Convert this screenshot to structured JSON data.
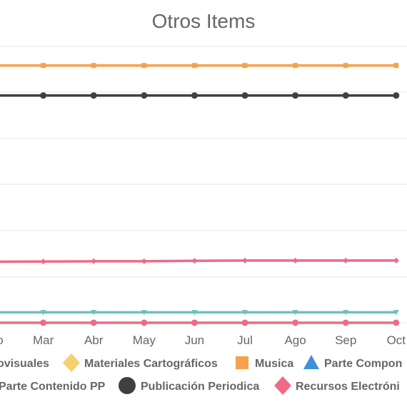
{
  "chart_data": {
    "type": "line",
    "title": "Otros Items",
    "categories": [
      "Feb",
      "Mar",
      "Abr",
      "May",
      "Jun",
      "Jul",
      "Ago",
      "Sep",
      "Oct"
    ],
    "category_labels_visible": [
      "o",
      "Mar",
      "Abr",
      "May",
      "Jun",
      "Jul",
      "Ago",
      "Sep",
      "Oct"
    ],
    "xlabel": "",
    "ylabel": "",
    "ylim": [
      0,
      5800
    ],
    "grid": true,
    "legend_position": "bottom",
    "series": [
      {
        "name": "Musica",
        "color": "#f4a24d",
        "marker": "square",
        "values": [
          5400,
          5400,
          5400,
          5400,
          5400,
          5400,
          5400,
          5400,
          5400
        ]
      },
      {
        "name": "Publicación Periodica",
        "color": "#404040",
        "marker": "circle",
        "values": [
          4770,
          4770,
          4770,
          4770,
          4770,
          4770,
          4770,
          4770,
          4770
        ]
      },
      {
        "name": "Recursos Electrónicos",
        "color": "#ee6a86",
        "marker": "diamond",
        "values": [
          1280,
          1285,
          1290,
          1290,
          1300,
          1305,
          1305,
          1305,
          1305
        ]
      },
      {
        "name": "Parte Componente",
        "color": "#6cc1bc",
        "marker": "triangle",
        "values": [
          220,
          220,
          220,
          220,
          220,
          220,
          220,
          220,
          220
        ]
      },
      {
        "name": "Audiovisuales",
        "color": "#ee6a86",
        "marker": "circle",
        "values": [
          0,
          0,
          0,
          0,
          0,
          0,
          0,
          0,
          0
        ]
      }
    ],
    "legend": [
      {
        "text": "ovisuales",
        "marker": "",
        "color": ""
      },
      {
        "text": "Materiales Cartográficos",
        "marker": "diamond",
        "color": "#f7d06f"
      },
      {
        "text": "Musica",
        "marker": "square",
        "color": "#f4a24d"
      },
      {
        "text": "Parte Compon",
        "marker": "triangle",
        "color": "#3f8fd9"
      },
      {
        "text": "Parte Contenido PP",
        "marker": "",
        "color": ""
      },
      {
        "text": "Publicación Periodica",
        "marker": "circle",
        "color": "#404040"
      },
      {
        "text": "Recursos Electróni",
        "marker": "diamond",
        "color": "#ee6a86"
      }
    ]
  }
}
